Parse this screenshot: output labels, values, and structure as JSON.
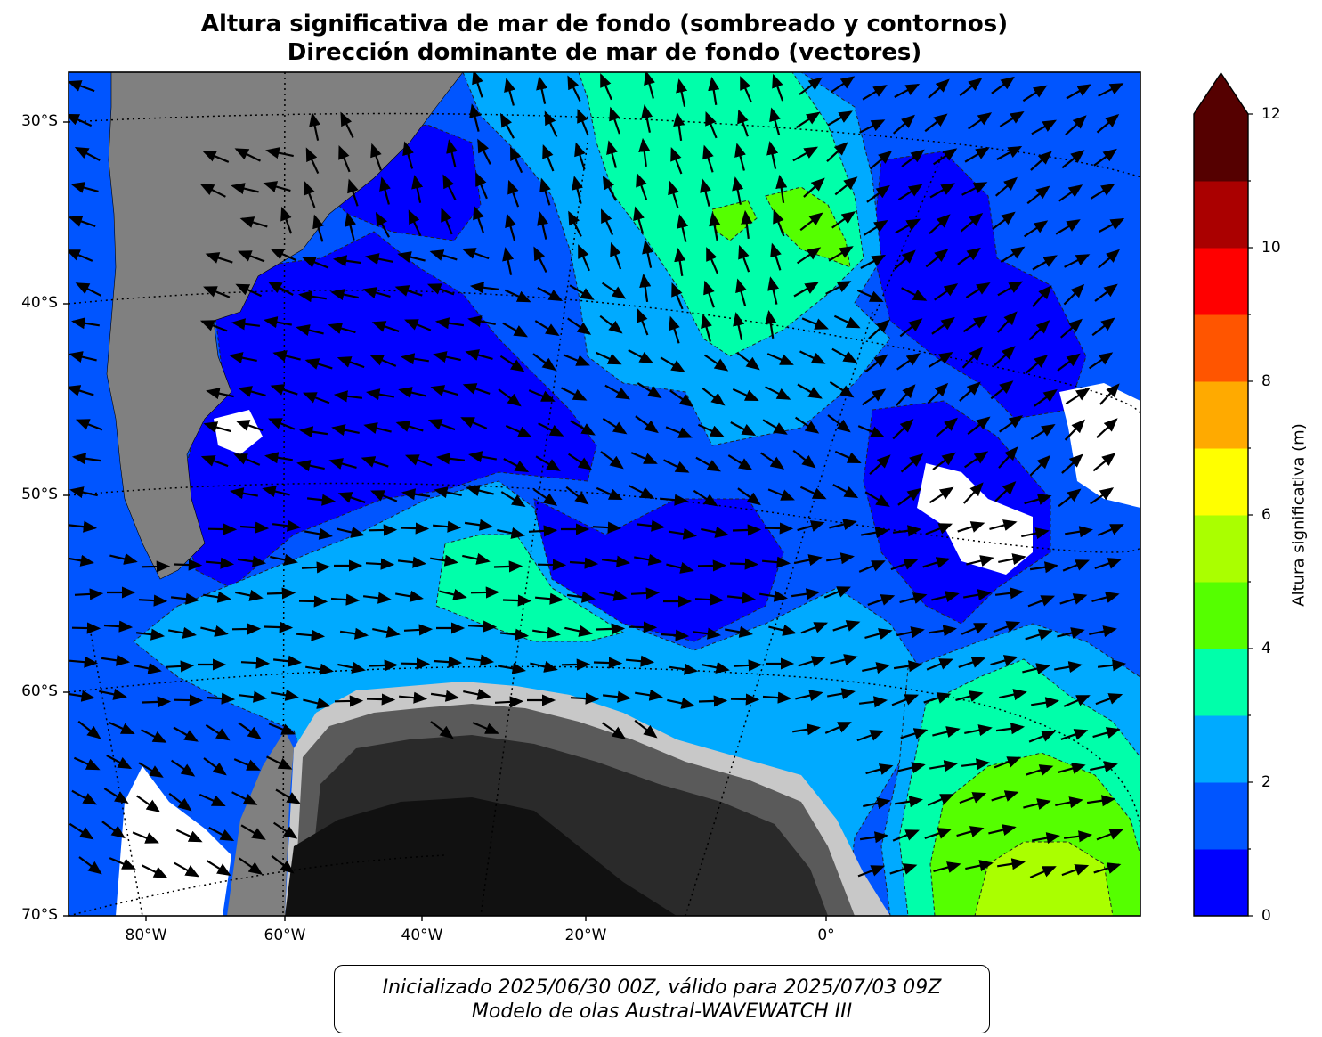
{
  "title_line1": "Altura significativa de mar de fondo (sombreado y contornos)",
  "title_line2": "Dirección dominante de mar de fondo (vectores)",
  "lat_labels": [
    "30°S",
    "40°S",
    "50°S",
    "60°S",
    "70°S"
  ],
  "lon_labels": [
    "80°W",
    "60°W",
    "40°W",
    "20°W",
    "0°"
  ],
  "colorbar": {
    "label": "Altura significativa (m)",
    "ticks": [
      "0",
      "2",
      "4",
      "6",
      "8",
      "10",
      "12"
    ],
    "levels": [
      0,
      1,
      2,
      3,
      4,
      5,
      6,
      7,
      8,
      9,
      10,
      11,
      12
    ],
    "colors": [
      "#0000ff",
      "#0055ff",
      "#00aaff",
      "#00ffaa",
      "#55ff00",
      "#aaff00",
      "#ffff00",
      "#ffaa00",
      "#ff5500",
      "#ff0000",
      "#aa0000",
      "#550000"
    ],
    "extend_color": "#550000"
  },
  "info_line1": "Inicializado 2025/06/30 00Z, válido para 2025/07/03 09Z",
  "info_line2": "Modelo de olas Austral-WAVEWATCH III",
  "colors": {
    "land": "#808080",
    "ice_light": "#c8c8c8",
    "ice_mid": "#5a5a5a",
    "ice_dark": "#2a2a2a",
    "ice_black": "#111111",
    "no_data": "#ffffff",
    "vector": "#000000"
  }
}
